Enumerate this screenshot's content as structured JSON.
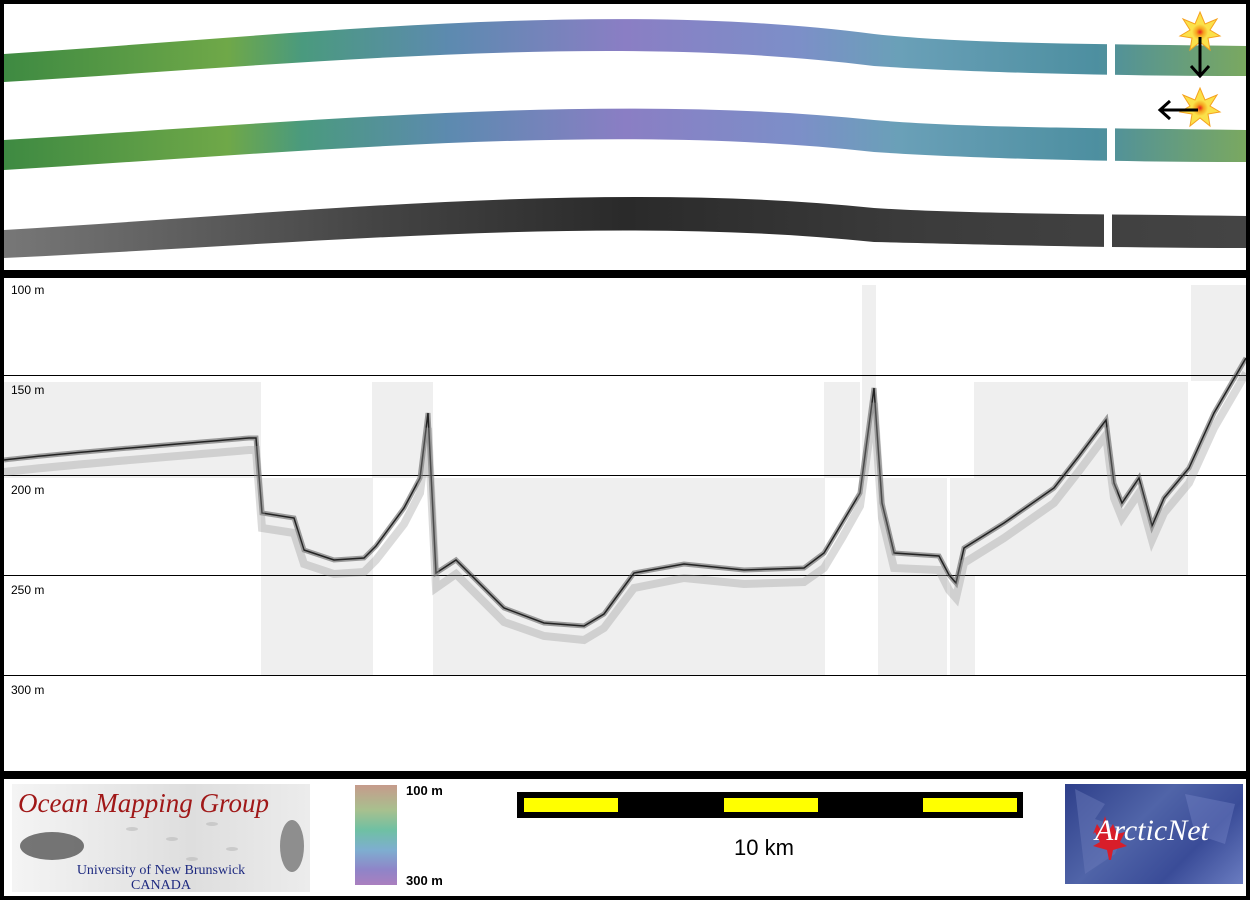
{
  "depth_labels": [
    "100 m",
    "150 m",
    "200 m",
    "250 m",
    "300 m"
  ],
  "legend": {
    "top_label": "100 m",
    "bottom_label": "300 m"
  },
  "scale": {
    "label": "10 km"
  },
  "logos": {
    "omg": {
      "title": "Ocean Mapping Group",
      "line1": "University of New Brunswick",
      "line2": "CANADA"
    },
    "arcticnet": {
      "text": "ArcticNet"
    }
  },
  "colors": {
    "scalebar": "#000000",
    "scale_segment": "#ffff00",
    "omg_title": "#a01818",
    "arcticnet_bg": "#3a4c98"
  },
  "icons": [
    "sun-icon",
    "arrow-down-icon",
    "arrow-left-icon",
    "maple-leaf-icon"
  ]
}
